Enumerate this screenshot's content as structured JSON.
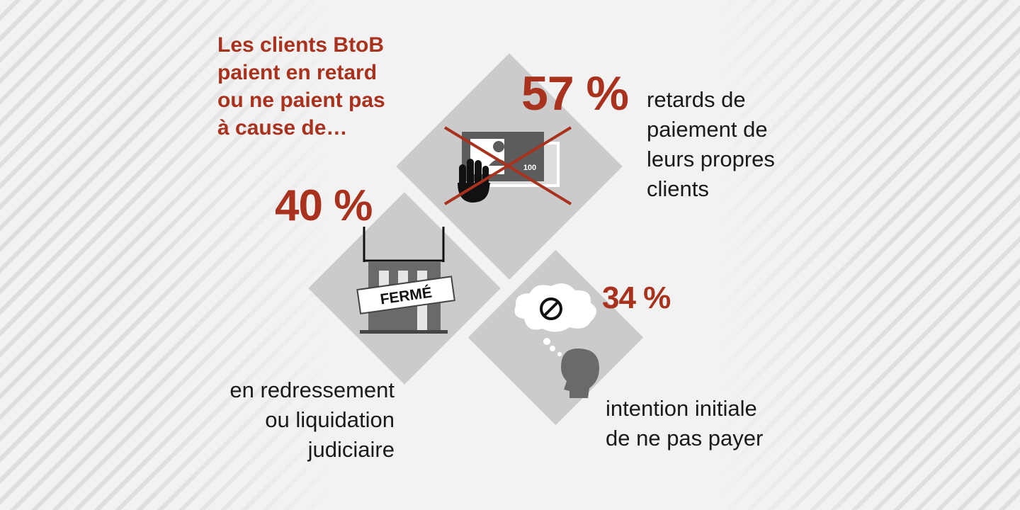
{
  "headline": "Les clients BtoB\npaient en retard\nou ne paient pas\nà cause de…",
  "stats": [
    {
      "value": "57 %",
      "description": "retards de\npaiement de\nleurs propres\nclients",
      "icon": "rejected-payment-icon"
    },
    {
      "value": "40 %",
      "description": "en redressement\nou liquidation\njudiciaire",
      "icon": "closed-shop-icon",
      "sign_text": "FERMÉ"
    },
    {
      "value": "34 %",
      "description": "intention initiale\nde ne pas payer",
      "icon": "refusal-thought-icon"
    }
  ],
  "payment_amount": "100",
  "colors": {
    "accent": "#a8321e",
    "diamond": "#cbcbcb",
    "background": "#f2f2f2",
    "text": "#1a1a1a"
  }
}
